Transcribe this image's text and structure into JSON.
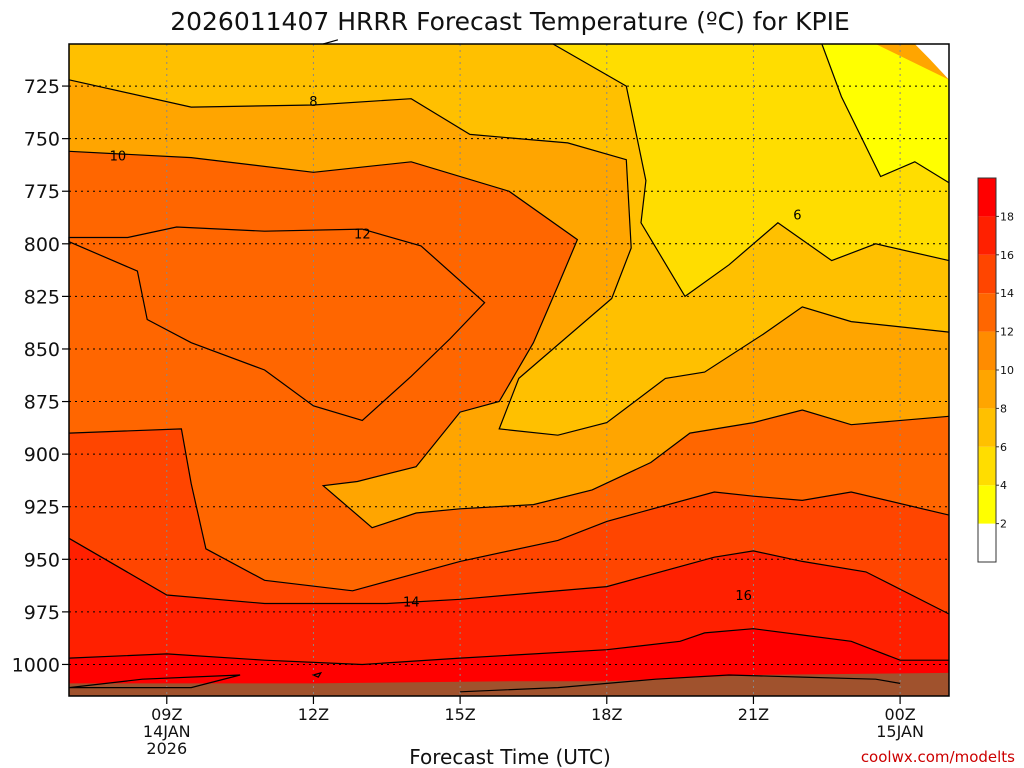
{
  "chart_data": {
    "type": "contour",
    "title": "2026011407 HRRR Forecast Temperature (ºC) for KPIE",
    "xlabel": "Forecast Time (UTC)",
    "ylabel": "",
    "credit": "coolwx.com/modelts",
    "xlim": [
      7,
      25
    ],
    "ylim": [
      1015,
      705
    ],
    "x_ticks": [
      {
        "x": 9,
        "lines": [
          "09Z",
          "14JAN",
          "2026"
        ]
      },
      {
        "x": 12,
        "lines": [
          "12Z"
        ]
      },
      {
        "x": 15,
        "lines": [
          "15Z"
        ]
      },
      {
        "x": 18,
        "lines": [
          "18Z"
        ]
      },
      {
        "x": 21,
        "lines": [
          "21Z"
        ]
      },
      {
        "x": 24,
        "lines": [
          "00Z",
          "15JAN"
        ]
      }
    ],
    "y_ticks": [
      725,
      750,
      775,
      800,
      825,
      850,
      875,
      900,
      925,
      950,
      975,
      1000
    ],
    "levels": [
      2,
      4,
      6,
      8,
      10,
      12,
      14,
      16,
      18
    ],
    "colors": [
      "#ffffff",
      "#ffff00",
      "#ffdd00",
      "#ffc000",
      "#ffa500",
      "#ff8c00",
      "#ff6600",
      "#ff4500",
      "#ff2000",
      "#ff0000"
    ],
    "colorbar_labels": [
      "2",
      "4",
      "6",
      "8",
      "10",
      "12",
      "14",
      "16",
      "18"
    ],
    "contours": [
      {
        "value": 6,
        "label": "6",
        "label_at": [
          21.9,
          786
        ],
        "points": [
          [
            22.4,
            705
          ],
          [
            22.8,
            730
          ],
          [
            23.6,
            768
          ],
          [
            24.3,
            761
          ],
          [
            25,
            771
          ]
        ]
      },
      {
        "value": 6,
        "label": "",
        "label_at": null,
        "points": [
          [
            16.9,
            705
          ],
          [
            18.4,
            725
          ],
          [
            18.8,
            770
          ],
          [
            18.7,
            790
          ],
          [
            19.6,
            825
          ],
          [
            20.5,
            810
          ],
          [
            21.5,
            790
          ],
          [
            22.6,
            808
          ],
          [
            23.5,
            800
          ],
          [
            25,
            808
          ]
        ]
      },
      {
        "value": 8,
        "label": "8",
        "label_at": [
          12.0,
          732
        ],
        "points": [
          [
            7,
            722
          ],
          [
            9.5,
            735
          ],
          [
            12,
            734
          ],
          [
            14,
            731
          ],
          [
            15.2,
            748
          ],
          [
            17.2,
            752
          ],
          [
            18.4,
            760
          ],
          [
            18.5,
            802
          ],
          [
            18.1,
            826
          ],
          [
            16.2,
            864
          ],
          [
            15.8,
            888
          ],
          [
            17,
            891
          ],
          [
            18,
            885
          ],
          [
            19.2,
            864
          ],
          [
            20,
            861
          ],
          [
            21.2,
            843
          ],
          [
            22,
            830
          ],
          [
            23,
            837
          ],
          [
            25,
            842
          ]
        ]
      },
      {
        "value": 8,
        "label": "",
        "label_at": null,
        "points": [
          [
            12.2,
            705
          ],
          [
            12.5,
            703
          ]
        ]
      },
      {
        "value": 10,
        "label": "10",
        "label_at": [
          8.0,
          758
        ],
        "points": [
          [
            7,
            756
          ],
          [
            9.5,
            759
          ],
          [
            12,
            766
          ],
          [
            14,
            761
          ],
          [
            16,
            775
          ],
          [
            17.4,
            798
          ],
          [
            17,
            820
          ],
          [
            16.5,
            847
          ],
          [
            15.8,
            875
          ],
          [
            15,
            880
          ],
          [
            14.1,
            906
          ],
          [
            12.9,
            913
          ],
          [
            12.2,
            915
          ],
          [
            13.2,
            935
          ],
          [
            14.1,
            928
          ],
          [
            15,
            926
          ],
          [
            16.5,
            924
          ],
          [
            17.7,
            917
          ],
          [
            18.9,
            904
          ],
          [
            19.7,
            890
          ],
          [
            21,
            885
          ],
          [
            22,
            879
          ],
          [
            23,
            886
          ],
          [
            25,
            882
          ]
        ]
      },
      {
        "value": 12,
        "label": "12",
        "label_at": [
          13.0,
          795
        ],
        "points": [
          [
            7,
            797
          ],
          [
            8.2,
            797
          ],
          [
            9.2,
            792
          ],
          [
            11,
            794
          ],
          [
            13,
            793
          ],
          [
            14.2,
            801
          ],
          [
            15.5,
            828
          ],
          [
            14.8,
            845
          ],
          [
            14.0,
            863
          ],
          [
            13.0,
            884
          ],
          [
            12,
            877
          ],
          [
            11,
            860
          ],
          [
            9.5,
            847
          ],
          [
            8.6,
            836
          ],
          [
            8.4,
            813
          ],
          [
            7,
            799
          ]
        ]
      },
      {
        "value": 14,
        "label": "14",
        "label_at": [
          14.0,
          970
        ],
        "points": [
          [
            7,
            890
          ],
          [
            9.3,
            888
          ],
          [
            9.5,
            914
          ],
          [
            9.8,
            945
          ],
          [
            11,
            960
          ],
          [
            12.8,
            965
          ],
          [
            15,
            951
          ],
          [
            17,
            941
          ],
          [
            18,
            932
          ],
          [
            20.2,
            918
          ],
          [
            21,
            920
          ],
          [
            22,
            922
          ],
          [
            23,
            918
          ],
          [
            25,
            929
          ]
        ]
      },
      {
        "value": 16,
        "label": "16",
        "label_at": [
          20.8,
          967
        ],
        "points": [
          [
            7,
            940
          ],
          [
            9,
            967
          ],
          [
            11,
            971
          ],
          [
            13.5,
            971
          ],
          [
            15,
            969
          ],
          [
            16.5,
            966
          ],
          [
            18,
            963
          ],
          [
            20.2,
            949
          ],
          [
            21,
            946
          ],
          [
            22,
            951
          ],
          [
            23.3,
            956
          ],
          [
            25,
            976
          ]
        ]
      },
      {
        "value": 18,
        "label": "",
        "label_at": null,
        "points": [
          [
            7,
            997
          ],
          [
            9,
            995
          ],
          [
            11,
            998
          ],
          [
            13,
            1000
          ],
          [
            15,
            997
          ],
          [
            18,
            993
          ],
          [
            19.5,
            989
          ],
          [
            20,
            985
          ],
          [
            21,
            983
          ],
          [
            22,
            986
          ],
          [
            23,
            989
          ],
          [
            24,
            998
          ],
          [
            25,
            998
          ]
        ]
      },
      {
        "value": 18,
        "label": "",
        "label_at": null,
        "points": [
          [
            7,
            1011
          ],
          [
            8.5,
            1007
          ],
          [
            10.5,
            1005
          ],
          [
            9.5,
            1011
          ]
        ]
      },
      {
        "value": 18,
        "label": "",
        "label_at": null,
        "points": [
          [
            12,
            1005
          ],
          [
            12.15,
            1004
          ],
          [
            12.1,
            1006
          ]
        ]
      },
      {
        "value": 18,
        "label": "",
        "label_at": null,
        "points": [
          [
            15,
            1013
          ],
          [
            17,
            1011
          ],
          [
            19,
            1007
          ],
          [
            20.5,
            1005
          ],
          [
            22,
            1006
          ],
          [
            23.5,
            1007
          ],
          [
            24,
            1009
          ]
        ]
      }
    ],
    "regions": [
      {
        "value_range": "<2",
        "color_index": 0,
        "points": [
          [
            24.3,
            705
          ],
          [
            25,
            705
          ],
          [
            25,
            722
          ],
          [
            24.6,
            712
          ]
        ]
      },
      {
        "value_range": "2-4",
        "color_index": 1,
        "points": [
          [
            23.5,
            705
          ],
          [
            22.4,
            705
          ],
          [
            22.8,
            730
          ],
          [
            23.6,
            768
          ],
          [
            24.3,
            761
          ],
          [
            25,
            771
          ],
          [
            25,
            722
          ]
        ]
      },
      {
        "value_range": "4-6",
        "color_index": 2,
        "points": [
          [
            16.9,
            705
          ],
          [
            18.4,
            725
          ],
          [
            18.8,
            770
          ],
          [
            18.7,
            790
          ],
          [
            19.6,
            825
          ],
          [
            20.5,
            810
          ],
          [
            21.5,
            790
          ],
          [
            22.6,
            808
          ],
          [
            23.5,
            800
          ],
          [
            25,
            808
          ],
          [
            25,
            771
          ],
          [
            24.3,
            761
          ],
          [
            23.6,
            768
          ],
          [
            22.8,
            730
          ],
          [
            22.4,
            705
          ]
        ]
      },
      {
        "value_range": "6-8",
        "color_index": 3,
        "points": [
          [
            7,
            705
          ],
          [
            16.9,
            705
          ],
          [
            18.4,
            725
          ],
          [
            18.8,
            770
          ],
          [
            18.7,
            790
          ],
          [
            19.6,
            825
          ],
          [
            20.5,
            810
          ],
          [
            21.5,
            790
          ],
          [
            22.6,
            808
          ],
          [
            23.5,
            800
          ],
          [
            25,
            808
          ],
          [
            25,
            842
          ],
          [
            23,
            837
          ],
          [
            22,
            830
          ],
          [
            21.2,
            843
          ],
          [
            20,
            861
          ],
          [
            19.2,
            864
          ],
          [
            18,
            885
          ],
          [
            17,
            891
          ],
          [
            15.8,
            888
          ],
          [
            16.2,
            864
          ],
          [
            18.1,
            826
          ],
          [
            18.5,
            802
          ],
          [
            18.4,
            760
          ],
          [
            17.2,
            752
          ],
          [
            15.2,
            748
          ],
          [
            14,
            731
          ],
          [
            12,
            734
          ],
          [
            9.5,
            735
          ],
          [
            7,
            722
          ]
        ]
      }
    ],
    "ground": {
      "color": "#a0522d",
      "points": [
        [
          7,
          1009
        ],
        [
          12,
          1009
        ],
        [
          16,
          1008
        ],
        [
          18,
          1008
        ],
        [
          21,
          1005
        ],
        [
          25,
          1004
        ]
      ]
    }
  }
}
